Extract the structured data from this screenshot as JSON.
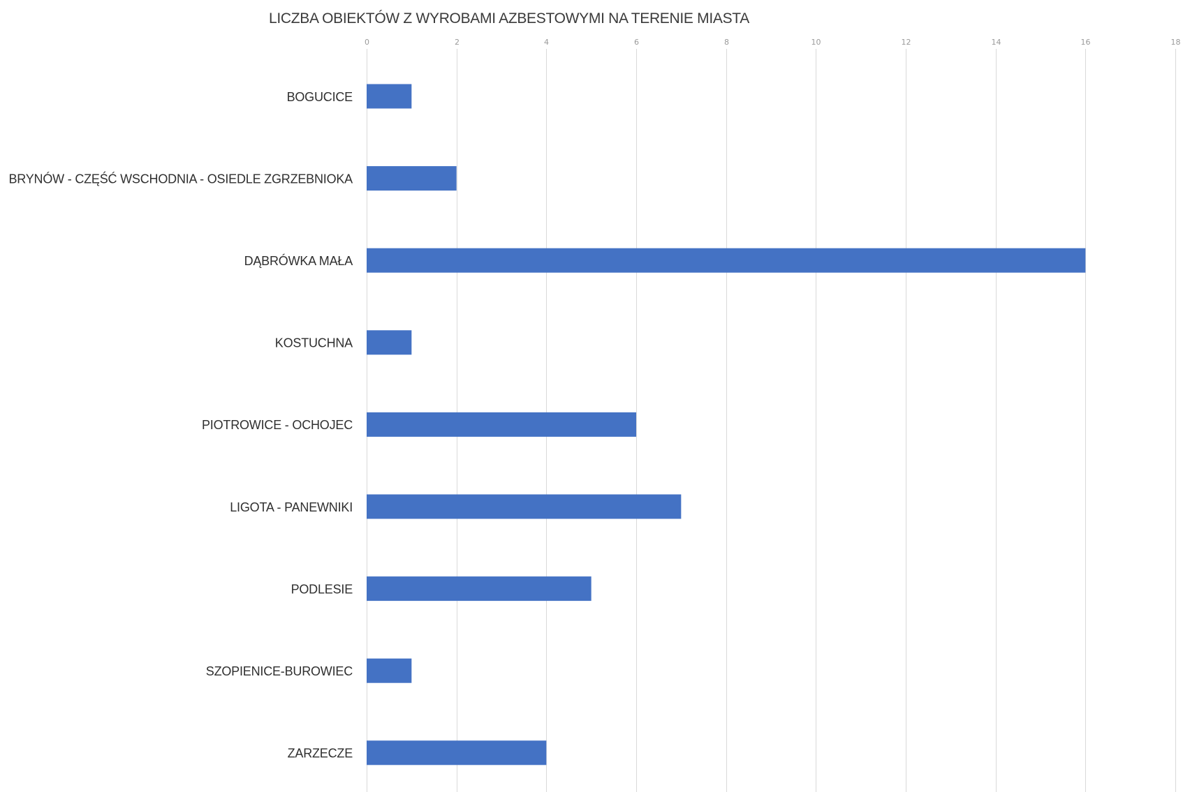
{
  "chart_data": {
    "type": "bar",
    "orientation": "horizontal",
    "title": "LICZBA OBIEKTÓW Z WYROBAMI AZBESTOWYMI NA TERENIE MIASTA",
    "categories": [
      "BOGUCICE",
      "BRYNÓW - CZĘŚĆ WSCHODNIA - OSIEDLE ZGRZEBNIOKA",
      "DĄBRÓWKA MAŁA",
      "KOSTUCHNA",
      "PIOTROWICE - OCHOJEC",
      "LIGOTA - PANEWNIKI",
      "PODLESIE",
      "SZOPIENICE-BUROWIEC",
      "ZARZECZE"
    ],
    "values": [
      1,
      2,
      16,
      1,
      6,
      7,
      5,
      1,
      4
    ],
    "xlim": [
      0,
      18
    ],
    "ticks": [
      "0",
      "2",
      "4",
      "6",
      "8",
      "10",
      "12",
      "14",
      "16",
      "18"
    ],
    "tick_values": [
      0,
      2,
      4,
      6,
      8,
      10,
      12,
      14,
      16,
      18
    ],
    "axis_position": "top",
    "grid": true,
    "legend": "none",
    "colors": {
      "bar": "#4472c4",
      "grid": "#d9d9d9",
      "tick_text": "#9a9a9a",
      "label_text": "#2f2f2f",
      "title_text": "#3a3a3a"
    }
  }
}
